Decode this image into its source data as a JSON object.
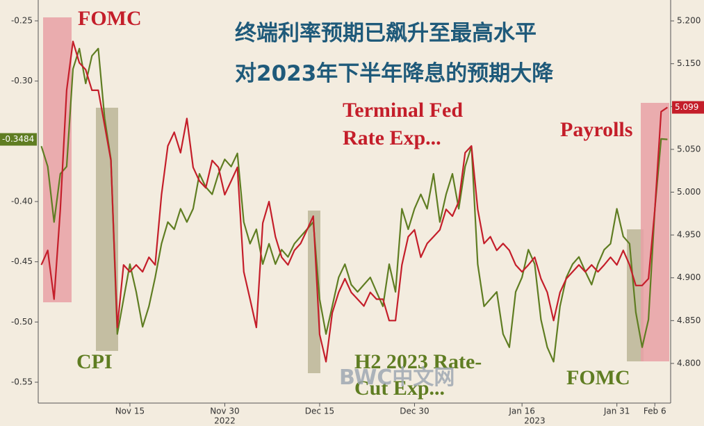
{
  "chart_data": {
    "type": "line",
    "title": [
      "终端利率预期已飙升至最高水平",
      "对2023年下半年降息的预期大降"
    ],
    "watermark": "BWC中文网",
    "annotations": [
      {
        "text": "FOMC",
        "color": "#c41e2a"
      },
      {
        "text": "CPI",
        "color": "#5f7d22"
      },
      {
        "text": "Terminal Fed",
        "color": "#c41e2a"
      },
      {
        "text": "Rate Exp...",
        "color": "#c41e2a"
      },
      {
        "text": "Payrolls",
        "color": "#c41e2a"
      },
      {
        "text": "H2 2023 Rate-",
        "color": "#5f7d22"
      },
      {
        "text": "Cut Exp...",
        "color": "#5f7d22"
      },
      {
        "text": "FOMC",
        "color": "#5f7d22"
      }
    ],
    "categories": [
      null,
      null,
      null,
      null,
      null,
      null,
      null,
      null,
      null,
      null,
      null,
      null,
      null,
      null,
      "Nov 15",
      null,
      null,
      null,
      null,
      null,
      null,
      null,
      null,
      null,
      null,
      null,
      null,
      null,
      null,
      "Nov 30",
      null,
      null,
      null,
      null,
      null,
      null,
      null,
      null,
      null,
      null,
      null,
      null,
      null,
      null,
      "Dec 15",
      null,
      null,
      null,
      null,
      null,
      null,
      null,
      null,
      null,
      null,
      null,
      null,
      null,
      null,
      "Dec 30",
      null,
      null,
      null,
      null,
      null,
      null,
      null,
      null,
      null,
      null,
      null,
      null,
      null,
      null,
      null,
      null,
      "Jan 16",
      null,
      null,
      null,
      null,
      null,
      null,
      null,
      null,
      null,
      null,
      null,
      null,
      null,
      null,
      "Jan 31",
      null,
      null,
      null,
      null,
      null,
      "Feb 6",
      null,
      null
    ],
    "year_labels": [
      "2022",
      "2023"
    ],
    "series": [
      {
        "color": "#c41e2a",
        "axis": "y2",
        "values": [
          4.915,
          4.932,
          4.875,
          4.98,
          5.119,
          5.176,
          5.151,
          5.143,
          5.119,
          5.119,
          5.078,
          5.037,
          4.842,
          4.915,
          4.907,
          4.915,
          4.907,
          4.924,
          4.915,
          4.997,
          5.054,
          5.07,
          5.046,
          5.086,
          5.029,
          5.013,
          5.005,
          5.037,
          5.029,
          4.997,
          5.013,
          5.029,
          4.907,
          4.875,
          4.842,
          4.964,
          4.989,
          4.948,
          4.924,
          4.915,
          4.932,
          4.94,
          4.956,
          4.972,
          4.834,
          4.802,
          4.859,
          4.883,
          4.899,
          4.883,
          4.875,
          4.867,
          4.883,
          4.875,
          4.875,
          4.85,
          4.85,
          4.915,
          4.948,
          4.956,
          4.924,
          4.94,
          4.948,
          4.956,
          4.98,
          4.972,
          4.989,
          5.046,
          5.054,
          4.98,
          4.94,
          4.948,
          4.932,
          4.94,
          4.932,
          4.915,
          4.907,
          4.915,
          4.924,
          4.899,
          4.883,
          4.85,
          4.883,
          4.899,
          4.907,
          4.915,
          4.907,
          4.915,
          4.907,
          4.915,
          4.924,
          4.915,
          4.932,
          4.915,
          4.891,
          4.891,
          4.899,
          4.98,
          5.094,
          5.099
        ]
      },
      {
        "color": "#5f7d22",
        "axis": "y",
        "values": [
          -0.354,
          -0.371,
          -0.417,
          -0.377,
          -0.371,
          -0.29,
          -0.273,
          -0.302,
          -0.279,
          -0.273,
          -0.331,
          -0.365,
          -0.51,
          -0.481,
          -0.452,
          -0.475,
          -0.504,
          -0.487,
          -0.463,
          -0.435,
          -0.417,
          -0.423,
          -0.406,
          -0.417,
          -0.406,
          -0.377,
          -0.388,
          -0.394,
          -0.377,
          -0.365,
          -0.371,
          -0.36,
          -0.417,
          -0.435,
          -0.423,
          -0.452,
          -0.435,
          -0.452,
          -0.44,
          -0.446,
          -0.435,
          -0.429,
          -0.423,
          -0.417,
          -0.481,
          -0.51,
          -0.487,
          -0.463,
          -0.452,
          -0.469,
          -0.475,
          -0.469,
          -0.463,
          -0.475,
          -0.487,
          -0.452,
          -0.475,
          -0.406,
          -0.423,
          -0.406,
          -0.394,
          -0.406,
          -0.377,
          -0.417,
          -0.394,
          -0.377,
          -0.406,
          -0.371,
          -0.354,
          -0.452,
          -0.487,
          -0.481,
          -0.475,
          -0.51,
          -0.521,
          -0.475,
          -0.463,
          -0.44,
          -0.452,
          -0.498,
          -0.521,
          -0.533,
          -0.487,
          -0.463,
          -0.452,
          -0.446,
          -0.458,
          -0.469,
          -0.452,
          -0.44,
          -0.435,
          -0.406,
          -0.429,
          -0.435,
          -0.492,
          -0.521,
          -0.498,
          -0.406,
          -0.348,
          -0.3484
        ]
      }
    ],
    "ylim": [
      -0.5673,
      -0.2327
    ],
    "yticks": [
      -0.25,
      {
        "value": -0.3,
        "label": "-0.30"
      },
      {
        "value": -0.4,
        "label": "-0.40"
      },
      -0.45,
      {
        "value": -0.5,
        "label": "-0.50"
      },
      -0.55
    ],
    "y2lim": [
      4.7537,
      5.2244
    ],
    "y2ticks": [
      {
        "value": 4.8,
        "label": "4.800"
      },
      {
        "value": 4.85,
        "label": "4.850"
      },
      {
        "value": 4.9,
        "label": "4.900"
      },
      {
        "value": 4.95,
        "label": "4.950"
      },
      {
        "value": 5.0,
        "label": "5.000"
      },
      {
        "value": 5.05,
        "label": "5.050"
      },
      {
        "value": 5.1,
        "label": "5.100"
      },
      {
        "value": 5.15,
        "label": "5.150"
      },
      {
        "value": 5.2,
        "label": "5.200"
      }
    ]
  }
}
